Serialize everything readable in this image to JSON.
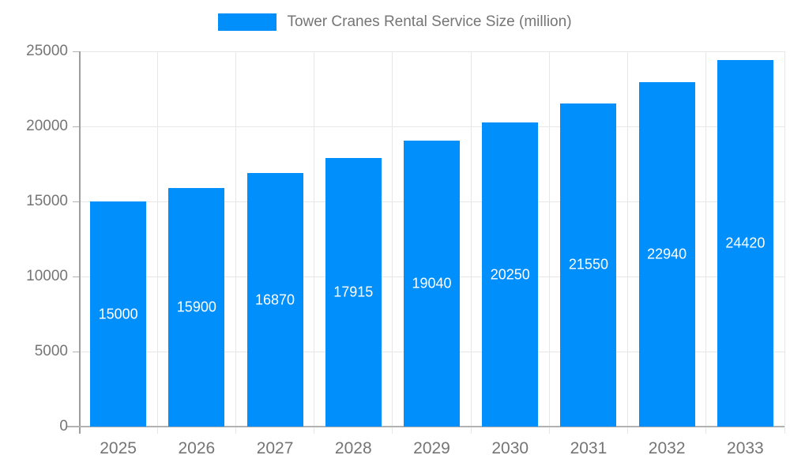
{
  "legend": {
    "label": "Tower Cranes Rental Service Size (million)"
  },
  "chart_data": {
    "type": "bar",
    "title": "Tower Cranes Rental Service Size (million)",
    "categories": [
      "2025",
      "2026",
      "2027",
      "2028",
      "2029",
      "2030",
      "2031",
      "2032",
      "2033"
    ],
    "series": [
      {
        "name": "Tower Cranes Rental Service Size (million)",
        "values": [
          15000,
          15900,
          16870,
          17915,
          19040,
          20250,
          21550,
          22940,
          24420
        ]
      }
    ],
    "value_labels": [
      "15000",
      "15900",
      "16870",
      "17915",
      "19040",
      "20250",
      "21550",
      "22940",
      "24420"
    ],
    "xlabel": "",
    "ylabel": "",
    "ylim": [
      0,
      25000
    ],
    "yticks": [
      0,
      5000,
      10000,
      15000,
      20000,
      25000
    ],
    "ytick_labels": [
      "0",
      "5000",
      "10000",
      "15000",
      "20000",
      "25000"
    ],
    "grid": "horizontal-and-vertical",
    "legend_position": "top",
    "value_labels_visible": true,
    "value_label_position": "inside-center",
    "colors": {
      "bar": "#008FFB",
      "grid": "#e7e7e7",
      "y_axis_line": "#9e9e9e",
      "x_axis_line": "#b2b2b2",
      "tick": "#b2b2b2",
      "axis_label_text": "#757575",
      "legend_text": "#757575",
      "value_label_text": "#ffffff"
    }
  }
}
